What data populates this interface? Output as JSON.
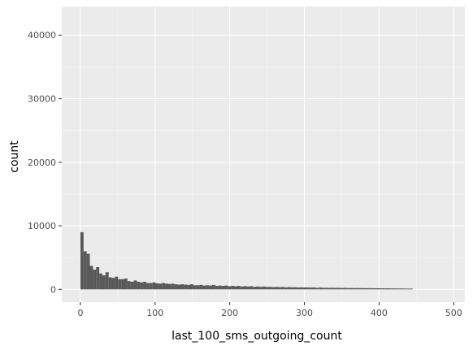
{
  "chart_data": {
    "type": "bar",
    "title": "",
    "xlabel": "last_100_sms_outgoing_count",
    "ylabel": "count",
    "xlim": [
      -25,
      515
    ],
    "ylim": [
      -2000,
      44500
    ],
    "x_ticks": [
      0,
      100,
      200,
      300,
      400,
      500
    ],
    "x_tick_labels": [
      "0",
      "100",
      "200",
      "300",
      "400",
      "500"
    ],
    "y_ticks": [
      0,
      10000,
      20000,
      30000,
      40000
    ],
    "y_tick_labels": [
      "0",
      "10000",
      "20000",
      "30000",
      "40000"
    ],
    "grid": true,
    "bin_width": 4.2,
    "bin_start": 0,
    "values": [
      9000,
      6000,
      5600,
      3700,
      3100,
      3500,
      2500,
      2200,
      2700,
      1900,
      1800,
      2000,
      1600,
      1600,
      1700,
      1300,
      1200,
      1400,
      1200,
      1100,
      1200,
      1000,
      1000,
      1100,
      950,
      900,
      1000,
      900,
      850,
      900,
      800,
      750,
      800,
      750,
      700,
      800,
      650,
      650,
      700,
      600,
      650,
      600,
      700,
      550,
      600,
      550,
      600,
      500,
      550,
      500,
      550,
      450,
      500,
      450,
      500,
      400,
      450,
      400,
      450,
      380,
      400,
      350,
      380,
      350,
      380,
      320,
      350,
      320,
      340,
      300,
      320,
      300,
      300,
      280,
      300,
      250,
      280,
      250,
      260,
      240,
      250,
      230,
      240,
      220,
      230,
      210,
      220,
      200,
      210,
      200,
      200,
      190,
      190,
      180,
      180,
      170,
      170,
      160,
      160,
      150,
      150,
      140,
      140,
      130,
      130,
      120
    ],
    "colors": {
      "bar": "#595959",
      "panel_background": "#ebebeb",
      "grid_major": "#ffffff",
      "grid_minor": "#f5f5f5"
    }
  }
}
